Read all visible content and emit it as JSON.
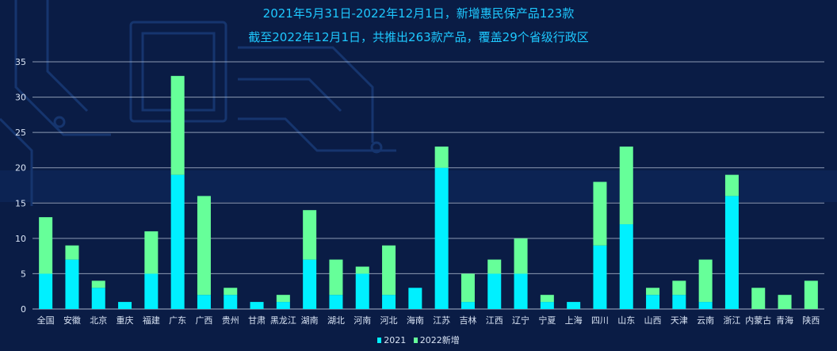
{
  "chart_data": {
    "type": "bar",
    "stacked": true,
    "title": "2021年5月31日-2022年12月1日，新增惠民保产品123款",
    "subtitle": "截至2022年12月1日，共推出263款产品，覆盖29个省级行政区",
    "xlabel": "",
    "ylabel": "",
    "ylim": [
      0,
      35
    ],
    "yticks": [
      0,
      5,
      10,
      15,
      20,
      25,
      30,
      35
    ],
    "grid": true,
    "legend": "bottom-center",
    "categories": [
      "全国",
      "安徽",
      "北京",
      "重庆",
      "福建",
      "广东",
      "广西",
      "贵州",
      "甘肃",
      "黑龙江",
      "湖南",
      "湖北",
      "河南",
      "河北",
      "海南",
      "江苏",
      "吉林",
      "江西",
      "辽宁",
      "宁夏",
      "上海",
      "四川",
      "山东",
      "山西",
      "天津",
      "云南",
      "浙江",
      "内蒙古",
      "青海",
      "陕西"
    ],
    "series": [
      {
        "name": "2021",
        "color": "#00f0ff",
        "values": [
          5,
          7,
          3,
          1,
          5,
          19,
          2,
          2,
          1,
          1,
          7,
          2,
          5,
          2,
          3,
          20,
          1,
          5,
          5,
          1,
          1,
          9,
          12,
          2,
          2,
          1,
          16,
          0,
          0,
          0
        ]
      },
      {
        "name": "2022新增",
        "color": "#66ff99",
        "values": [
          8,
          2,
          1,
          0,
          6,
          14,
          14,
          1,
          0,
          1,
          7,
          5,
          1,
          7,
          0,
          3,
          4,
          2,
          5,
          1,
          0,
          9,
          11,
          1,
          2,
          6,
          3,
          3,
          2,
          4
        ]
      }
    ],
    "colors": {
      "title": "#1ec8ff",
      "axis_text": "#d9e4f5",
      "grid": "#b8c4d8",
      "background": "#0a1c45"
    }
  }
}
